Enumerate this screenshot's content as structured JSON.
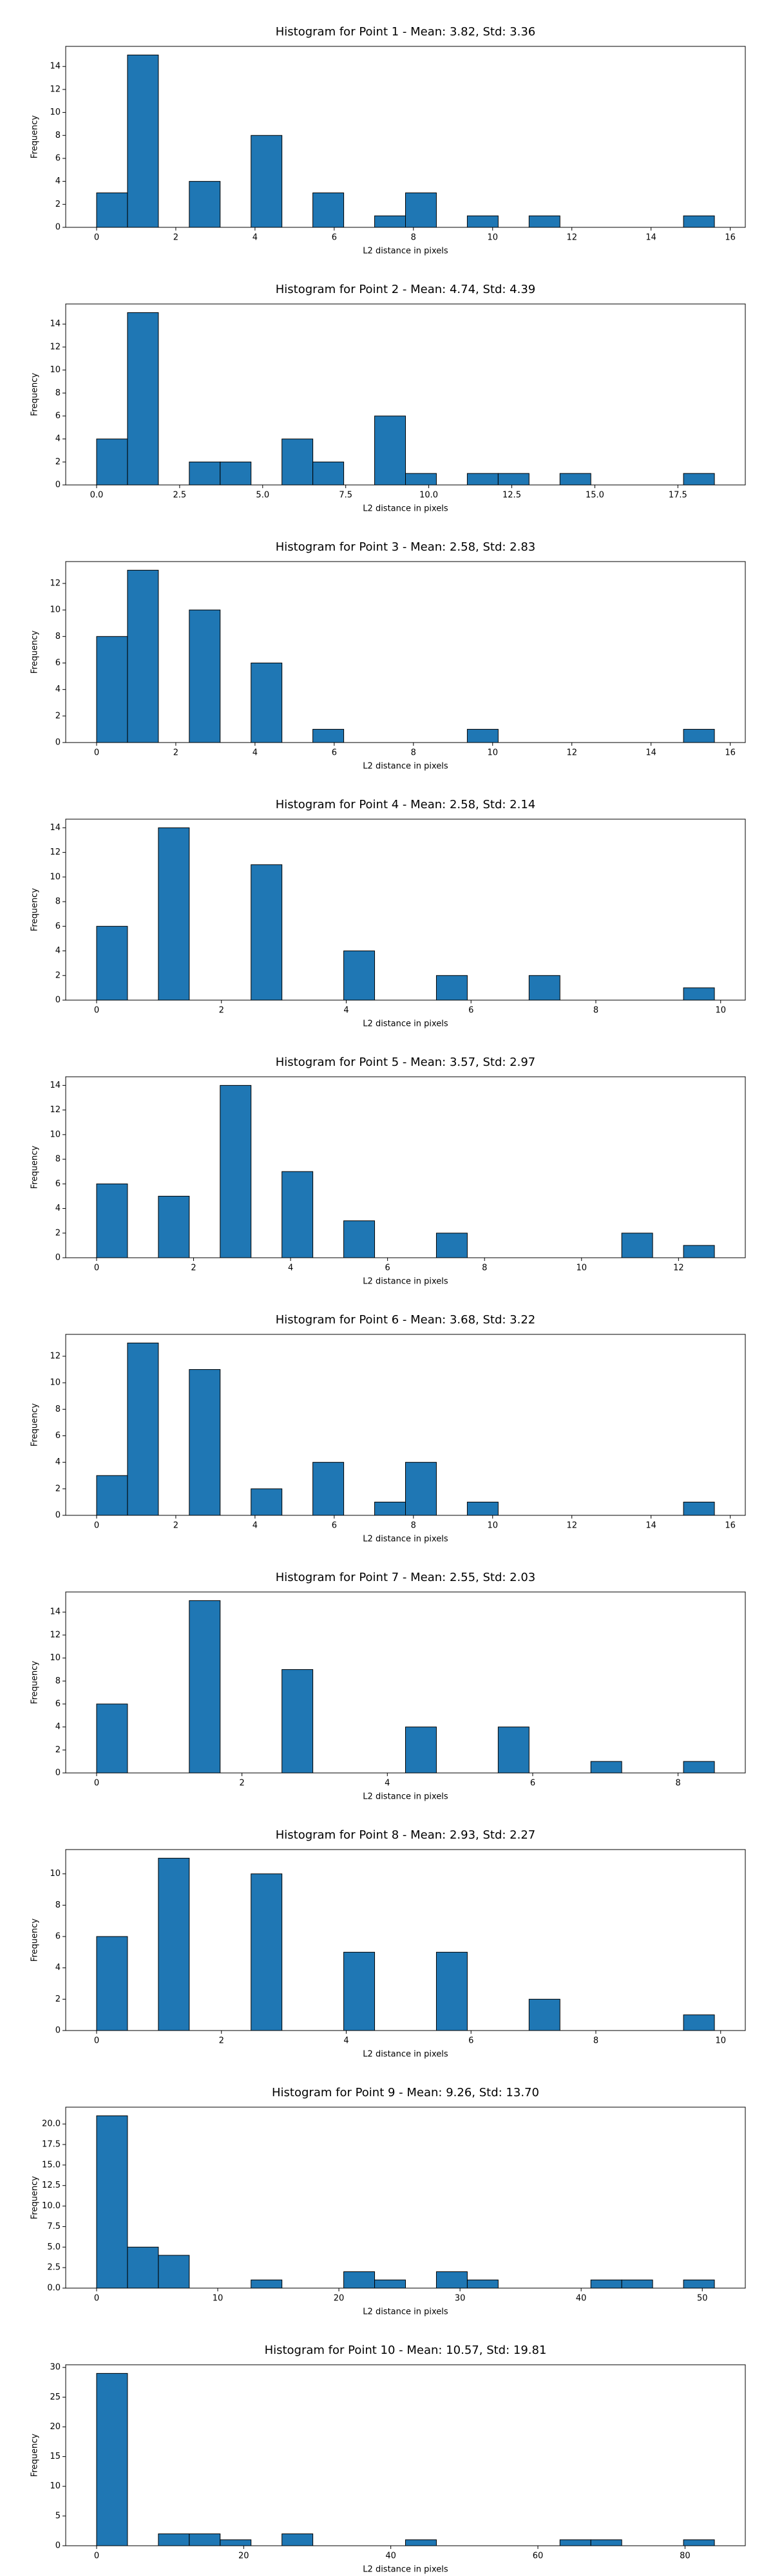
{
  "chart_data": [
    {
      "type": "histogram",
      "title": "Histogram for Point 1 - Mean: 3.82, Std: 3.36",
      "xlabel": "L2 distance in pixels",
      "ylabel": "Frequency",
      "color": "#1f77b4",
      "bins": [
        0,
        0.78,
        1.56,
        2.34,
        3.12,
        3.9,
        4.68,
        5.46,
        6.24,
        7.02,
        7.8,
        8.58,
        9.36,
        10.14,
        10.92,
        11.7,
        12.48,
        13.26,
        14.04,
        14.82,
        15.6
      ],
      "values": [
        3,
        15,
        0,
        4,
        0,
        8,
        0,
        3,
        0,
        1,
        3,
        0,
        1,
        0,
        1,
        0,
        0,
        0,
        0,
        1
      ],
      "xlim": [
        -0.78,
        16.38
      ],
      "xticks": [
        0,
        2,
        4,
        6,
        8,
        10,
        12,
        14,
        16
      ],
      "ylim": [
        0,
        15.75
      ],
      "yticks": [
        0,
        2,
        4,
        6,
        8,
        10,
        12,
        14
      ]
    },
    {
      "type": "histogram",
      "title": "Histogram for Point 2 - Mean: 4.74, Std: 4.39",
      "xlabel": "L2 distance in pixels",
      "ylabel": "Frequency",
      "color": "#1f77b4",
      "bins": [
        0,
        0.93,
        1.86,
        2.79,
        3.72,
        4.65,
        5.58,
        6.51,
        7.44,
        8.37,
        9.3,
        10.23,
        11.16,
        12.09,
        13.02,
        13.95,
        14.88,
        15.81,
        16.74,
        17.67,
        18.6
      ],
      "values": [
        4,
        15,
        0,
        2,
        2,
        0,
        4,
        2,
        0,
        6,
        1,
        0,
        1,
        1,
        0,
        1,
        0,
        0,
        0,
        1
      ],
      "xlim": [
        -0.93,
        19.53
      ],
      "xticks": [
        {
          "value": 0,
          "label": "0.0"
        },
        2.5,
        {
          "value": 5,
          "label": "5.0"
        },
        7.5,
        {
          "value": 10,
          "label": "10.0"
        },
        12.5,
        {
          "value": 15,
          "label": "15.0"
        },
        17.5
      ],
      "ylim": [
        0,
        15.75
      ],
      "yticks": [
        0,
        2,
        4,
        6,
        8,
        10,
        12,
        14
      ]
    },
    {
      "type": "histogram",
      "title": "Histogram for Point 3 - Mean: 2.58, Std: 2.83",
      "xlabel": "L2 distance in pixels",
      "ylabel": "Frequency",
      "color": "#1f77b4",
      "bins": [
        0,
        0.78,
        1.56,
        2.34,
        3.12,
        3.9,
        4.68,
        5.46,
        6.24,
        7.02,
        7.8,
        8.58,
        9.36,
        10.14,
        10.92,
        11.7,
        12.48,
        13.26,
        14.04,
        14.82,
        15.6
      ],
      "values": [
        8,
        13,
        0,
        10,
        0,
        6,
        0,
        1,
        0,
        0,
        0,
        0,
        1,
        0,
        0,
        0,
        0,
        0,
        0,
        1
      ],
      "xlim": [
        -0.78,
        16.38
      ],
      "xticks": [
        0,
        2,
        4,
        6,
        8,
        10,
        12,
        14,
        16
      ],
      "ylim": [
        0,
        13.65
      ],
      "yticks": [
        0,
        2,
        4,
        6,
        8,
        10,
        12
      ]
    },
    {
      "type": "histogram",
      "title": "Histogram for Point 4 - Mean: 2.58, Std: 2.14",
      "xlabel": "L2 distance in pixels",
      "ylabel": "Frequency",
      "color": "#1f77b4",
      "bins": [
        0,
        0.495,
        0.99,
        1.485,
        1.98,
        2.475,
        2.97,
        3.465,
        3.96,
        4.455,
        4.95,
        5.445,
        5.94,
        6.435,
        6.93,
        7.425,
        7.92,
        8.415,
        8.91,
        9.405,
        9.9
      ],
      "values": [
        6,
        0,
        14,
        0,
        0,
        11,
        0,
        0,
        4,
        0,
        0,
        2,
        0,
        0,
        2,
        0,
        0,
        0,
        0,
        1
      ],
      "xlim": [
        -0.495,
        10.395
      ],
      "xticks": [
        0,
        2,
        4,
        6,
        8,
        10
      ],
      "ylim": [
        0,
        14.7
      ],
      "yticks": [
        0,
        2,
        4,
        6,
        8,
        10,
        12,
        14
      ]
    },
    {
      "type": "histogram",
      "title": "Histogram for Point 5 - Mean: 3.57, Std: 2.97",
      "xlabel": "L2 distance in pixels",
      "ylabel": "Frequency",
      "color": "#1f77b4",
      "bins": [
        0,
        0.637,
        1.274,
        1.911,
        2.548,
        3.185,
        3.822,
        4.459,
        5.096,
        5.733,
        6.37,
        7.007,
        7.644,
        8.281,
        8.918,
        9.555,
        10.192,
        10.829,
        11.466,
        12.103,
        12.74
      ],
      "values": [
        6,
        0,
        5,
        0,
        14,
        0,
        7,
        0,
        3,
        0,
        0,
        2,
        0,
        0,
        0,
        0,
        0,
        2,
        0,
        1
      ],
      "xlim": [
        -0.637,
        13.377
      ],
      "xticks": [
        0,
        2,
        4,
        6,
        8,
        10,
        12
      ],
      "ylim": [
        0,
        14.7
      ],
      "yticks": [
        0,
        2,
        4,
        6,
        8,
        10,
        12,
        14
      ]
    },
    {
      "type": "histogram",
      "title": "Histogram for Point 6 - Mean: 3.68, Std: 3.22",
      "xlabel": "L2 distance in pixels",
      "ylabel": "Frequency",
      "color": "#1f77b4",
      "bins": [
        0,
        0.78,
        1.56,
        2.34,
        3.12,
        3.9,
        4.68,
        5.46,
        6.24,
        7.02,
        7.8,
        8.58,
        9.36,
        10.14,
        10.92,
        11.7,
        12.48,
        13.26,
        14.04,
        14.82,
        15.6
      ],
      "values": [
        3,
        13,
        0,
        11,
        0,
        2,
        0,
        4,
        0,
        1,
        4,
        0,
        1,
        0,
        0,
        0,
        0,
        0,
        0,
        1
      ],
      "xlim": [
        -0.78,
        16.38
      ],
      "xticks": [
        0,
        2,
        4,
        6,
        8,
        10,
        12,
        14,
        16
      ],
      "ylim": [
        0,
        13.65
      ],
      "yticks": [
        0,
        2,
        4,
        6,
        8,
        10,
        12
      ]
    },
    {
      "type": "histogram",
      "title": "Histogram for Point 7 - Mean: 2.55, Std: 2.03",
      "xlabel": "L2 distance in pixels",
      "ylabel": "Frequency",
      "color": "#1f77b4",
      "bins": [
        0,
        0.425,
        0.85,
        1.275,
        1.7,
        2.125,
        2.55,
        2.975,
        3.4,
        3.825,
        4.25,
        4.675,
        5.1,
        5.525,
        5.95,
        6.375,
        6.8,
        7.225,
        7.65,
        8.075,
        8.5
      ],
      "values": [
        6,
        0,
        0,
        15,
        0,
        0,
        9,
        0,
        0,
        0,
        4,
        0,
        0,
        4,
        0,
        0,
        1,
        0,
        0,
        1
      ],
      "xlim": [
        -0.425,
        8.925
      ],
      "xticks": [
        0,
        2,
        4,
        6,
        8
      ],
      "ylim": [
        0,
        15.75
      ],
      "yticks": [
        0,
        2,
        4,
        6,
        8,
        10,
        12,
        14
      ]
    },
    {
      "type": "histogram",
      "title": "Histogram for Point 8 - Mean: 2.93, Std: 2.27",
      "xlabel": "L2 distance in pixels",
      "ylabel": "Frequency",
      "color": "#1f77b4",
      "bins": [
        0,
        0.495,
        0.99,
        1.485,
        1.98,
        2.475,
        2.97,
        3.465,
        3.96,
        4.455,
        4.95,
        5.445,
        5.94,
        6.435,
        6.93,
        7.425,
        7.92,
        8.415,
        8.91,
        9.405,
        9.9
      ],
      "values": [
        6,
        0,
        11,
        0,
        0,
        10,
        0,
        0,
        5,
        0,
        0,
        5,
        0,
        0,
        2,
        0,
        0,
        0,
        0,
        1
      ],
      "xlim": [
        -0.495,
        10.395
      ],
      "xticks": [
        0,
        2,
        4,
        6,
        8,
        10
      ],
      "ylim": [
        0,
        11.55
      ],
      "yticks": [
        0,
        2,
        4,
        6,
        8,
        10
      ]
    },
    {
      "type": "histogram",
      "title": "Histogram for Point 9 - Mean: 9.26, Std: 13.70",
      "xlabel": "L2 distance in pixels",
      "ylabel": "Frequency",
      "color": "#1f77b4",
      "bins": [
        0,
        2.55,
        5.1,
        7.65,
        10.2,
        12.75,
        15.3,
        17.85,
        20.4,
        22.95,
        25.5,
        28.05,
        30.6,
        33.15,
        35.7,
        38.25,
        40.8,
        43.35,
        45.9,
        48.45,
        51
      ],
      "values": [
        21,
        5,
        4,
        0,
        0,
        1,
        0,
        0,
        2,
        1,
        0,
        2,
        1,
        0,
        0,
        0,
        1,
        1,
        0,
        1
      ],
      "xlim": [
        -2.55,
        53.55
      ],
      "xticks": [
        0,
        10,
        20,
        30,
        40,
        50
      ],
      "ylim": [
        0,
        22.05
      ],
      "yticks": [
        {
          "value": 0,
          "label": "0.0"
        },
        2.5,
        {
          "value": 5,
          "label": "5.0"
        },
        7.5,
        {
          "value": 10,
          "label": "10.0"
        },
        12.5,
        {
          "value": 15,
          "label": "15.0"
        },
        17.5,
        {
          "value": 20,
          "label": "20.0"
        }
      ]
    },
    {
      "type": "histogram",
      "title": "Histogram for Point 10 - Mean: 10.57, Std: 19.81",
      "xlabel": "L2 distance in pixels",
      "ylabel": "Frequency",
      "color": "#1f77b4",
      "bins": [
        0,
        4.2,
        8.4,
        12.6,
        16.8,
        21,
        25.2,
        29.4,
        33.6,
        37.8,
        42,
        46.2,
        50.4,
        54.6,
        58.8,
        63,
        67.2,
        71.4,
        75.6,
        79.8,
        84
      ],
      "values": [
        29,
        0,
        2,
        2,
        1,
        0,
        2,
        0,
        0,
        0,
        1,
        0,
        0,
        0,
        0,
        1,
        1,
        0,
        0,
        1
      ],
      "xlim": [
        -4.2,
        88.2
      ],
      "xticks": [
        0,
        20,
        40,
        60,
        80
      ],
      "ylim": [
        0,
        30.45
      ],
      "yticks": [
        0,
        5,
        10,
        15,
        20,
        25,
        30
      ]
    }
  ]
}
